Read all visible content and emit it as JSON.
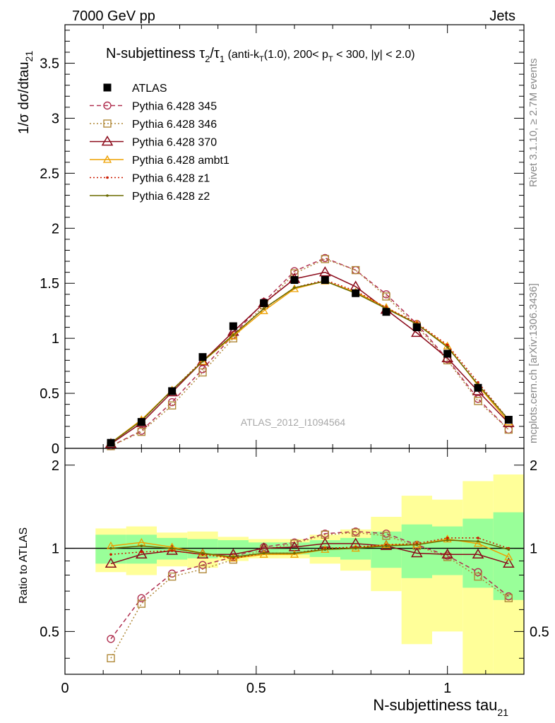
{
  "header": {
    "left": "7000 GeV pp",
    "right": "Jets"
  },
  "side_labels": {
    "rivet": "Rivet 3.1.10, ≥ 2.7M events",
    "mcplots": "mcplots.cern.ch [arXiv:1306.3436]"
  },
  "watermark": "ATLAS_2012_I1094564",
  "title_parts": {
    "main": "N-subjettiness τ",
    "sub2": "2",
    "slash": "/τ",
    "sub1": "1",
    "cuts1": " (anti-k",
    "cutsT": "T",
    "cuts2": "(1.0), 200< p",
    "cutsT2": "T",
    "cuts3": " < 300, |y| < 2.0)"
  },
  "y_label_main": {
    "base": "1/σ dσ/dtau",
    "sub": "21"
  },
  "y_label_ratio": "Ratio to ATLAS",
  "x_label": {
    "base": "N-subjettiness tau",
    "sub": "21"
  },
  "colors": {
    "s345": "#b03050",
    "s346": "#b08838",
    "s370": "#8b0a1a",
    "ambt1": "#eea000",
    "z1": "#cc1a00",
    "z2": "#6b6b00",
    "band_inner": "#99ff99",
    "band_outer": "#ffff99"
  },
  "chart_data": [
    {
      "type": "line",
      "panel": "main",
      "x": [
        0.12,
        0.2,
        0.28,
        0.36,
        0.44,
        0.52,
        0.6,
        0.68,
        0.76,
        0.84,
        0.92,
        1.0,
        1.08,
        1.16
      ],
      "xlim": [
        0,
        1.2
      ],
      "ylim": [
        0,
        3.85
      ],
      "y_ticks": [
        "0",
        "0.5",
        "1",
        "1.5",
        "2",
        "2.5",
        "3",
        "3.5"
      ],
      "series": [
        {
          "name": "ATLAS",
          "values": [
            0.05,
            0.24,
            0.52,
            0.83,
            1.11,
            1.32,
            1.53,
            1.53,
            1.41,
            1.24,
            1.1,
            0.86,
            0.55,
            0.26
          ]
        },
        {
          "name": "Pythia 6.428 345",
          "values": [
            0.02,
            0.16,
            0.42,
            0.72,
            1.03,
            1.33,
            1.61,
            1.73,
            1.62,
            1.4,
            1.13,
            0.81,
            0.45,
            0.17
          ]
        },
        {
          "name": "Pythia 6.428 346",
          "values": [
            0.02,
            0.15,
            0.39,
            0.69,
            1.0,
            1.3,
            1.59,
            1.72,
            1.62,
            1.38,
            1.11,
            0.8,
            0.43,
            0.17
          ]
        },
        {
          "name": "Pythia 6.428 370",
          "values": [
            0.04,
            0.23,
            0.51,
            0.79,
            1.06,
            1.32,
            1.54,
            1.6,
            1.47,
            1.26,
            1.05,
            0.82,
            0.52,
            0.23
          ]
        },
        {
          "name": "Pythia 6.428 ambt1",
          "values": [
            0.05,
            0.26,
            0.53,
            0.79,
            1.02,
            1.25,
            1.45,
            1.52,
            1.42,
            1.28,
            1.13,
            0.93,
            0.57,
            0.24
          ]
        },
        {
          "name": "Pythia 6.428 z1",
          "values": [
            0.05,
            0.25,
            0.53,
            0.8,
            1.03,
            1.27,
            1.46,
            1.53,
            1.43,
            1.28,
            1.14,
            0.94,
            0.6,
            0.26
          ]
        },
        {
          "name": "Pythia 6.428 z2",
          "values": [
            0.05,
            0.25,
            0.53,
            0.79,
            1.03,
            1.27,
            1.46,
            1.52,
            1.41,
            1.27,
            1.13,
            0.92,
            0.58,
            0.26
          ]
        }
      ]
    },
    {
      "type": "line",
      "panel": "ratio",
      "x": [
        0.12,
        0.2,
        0.28,
        0.36,
        0.44,
        0.52,
        0.6,
        0.68,
        0.76,
        0.84,
        0.92,
        1.0,
        1.08,
        1.16
      ],
      "bin_edges": [
        0.08,
        0.16,
        0.24,
        0.32,
        0.4,
        0.48,
        0.56,
        0.64,
        0.72,
        0.8,
        0.88,
        0.96,
        1.04,
        1.12,
        1.2
      ],
      "xlim": [
        0,
        1.2
      ],
      "ylim": [
        0.35,
        2.3
      ],
      "x_ticks": [
        "0",
        "0.5",
        "1"
      ],
      "y_ticks": [
        "0.5",
        "1",
        "2"
      ],
      "bands": {
        "inner_lo": [
          0.88,
          0.88,
          0.91,
          0.92,
          0.93,
          0.95,
          0.95,
          0.93,
          0.91,
          0.85,
          0.78,
          0.8,
          0.72,
          0.65
        ],
        "inner_hi": [
          1.12,
          1.12,
          1.09,
          1.08,
          1.07,
          1.05,
          1.05,
          1.07,
          1.09,
          1.15,
          1.22,
          1.2,
          1.28,
          1.35
        ],
        "outer_lo": [
          0.82,
          0.8,
          0.86,
          0.85,
          0.9,
          0.92,
          0.92,
          0.88,
          0.83,
          0.7,
          0.45,
          0.5,
          0.35,
          0.35
        ],
        "outer_hi": [
          1.18,
          1.2,
          1.14,
          1.15,
          1.1,
          1.08,
          1.08,
          1.12,
          1.17,
          1.3,
          1.55,
          1.5,
          1.75,
          1.85
        ]
      },
      "series": [
        {
          "name": "Pythia 6.428 345",
          "values": [
            0.47,
            0.66,
            0.81,
            0.87,
            0.93,
            1.01,
            1.05,
            1.13,
            1.15,
            1.13,
            1.03,
            0.94,
            0.82,
            0.67
          ]
        },
        {
          "name": "Pythia 6.428 346",
          "values": [
            0.4,
            0.63,
            0.79,
            0.84,
            0.91,
            0.99,
            1.04,
            1.12,
            1.14,
            1.11,
            1.02,
            0.93,
            0.79,
            0.66
          ]
        },
        {
          "name": "Pythia 6.428 370",
          "values": [
            0.88,
            0.95,
            0.98,
            0.95,
            0.95,
            1.0,
            1.01,
            1.04,
            1.04,
            1.02,
            0.96,
            0.95,
            0.95,
            0.88
          ]
        },
        {
          "name": "Pythia 6.428 ambt1",
          "values": [
            1.02,
            1.05,
            1.01,
            0.96,
            0.92,
            0.95,
            0.95,
            0.99,
            1.0,
            1.03,
            1.03,
            1.08,
            1.04,
            0.93
          ]
        },
        {
          "name": "Pythia 6.428 z1",
          "values": [
            0.95,
            0.97,
            0.98,
            0.95,
            0.92,
            0.96,
            0.96,
            1.0,
            1.01,
            1.03,
            1.04,
            1.09,
            1.09,
            1.0
          ]
        },
        {
          "name": "Pythia 6.428 z2",
          "values": [
            1.0,
            1.02,
            1.0,
            0.96,
            0.93,
            0.96,
            0.96,
            0.99,
            1.0,
            1.02,
            1.03,
            1.07,
            1.06,
            0.99
          ]
        }
      ]
    }
  ]
}
